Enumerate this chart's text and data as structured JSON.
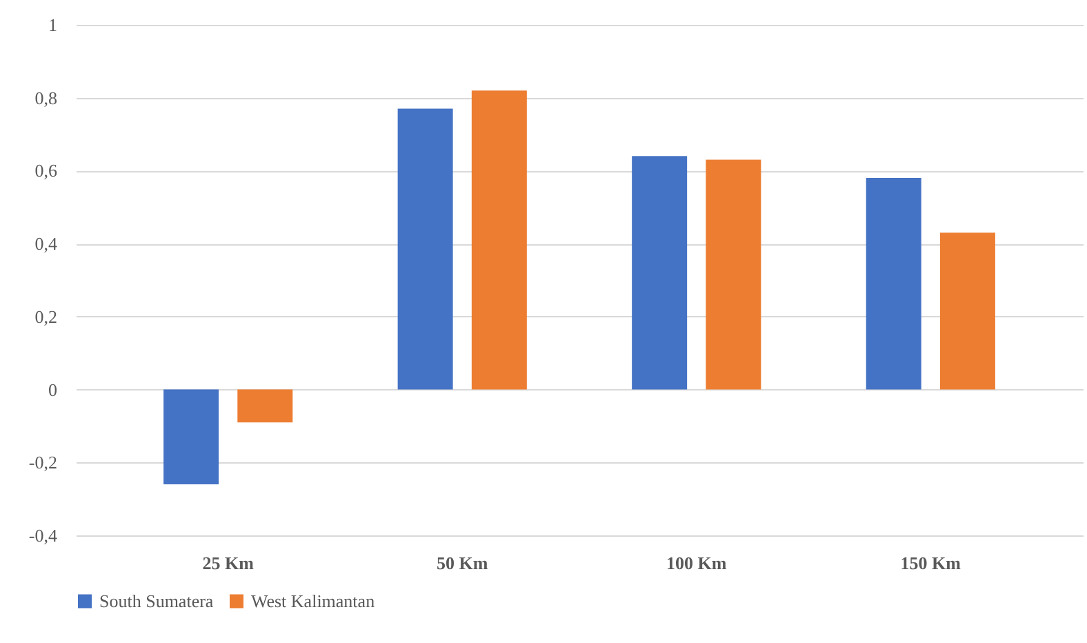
{
  "chart_data": {
    "type": "bar",
    "categories": [
      "25 Km",
      "50 Km",
      "100 Km",
      "150 Km"
    ],
    "series": [
      {
        "name": "South Sumatera",
        "color": "#4472c4",
        "values": [
          -0.26,
          0.77,
          0.64,
          0.58
        ]
      },
      {
        "name": "West Kalimantan",
        "color": "#ed7d31",
        "values": [
          -0.09,
          0.82,
          0.63,
          0.43
        ]
      }
    ],
    "ylim": [
      -0.4,
      1
    ],
    "yticks": [
      {
        "value": -0.4,
        "label": "-0,4"
      },
      {
        "value": -0.2,
        "label": "-0,2"
      },
      0,
      {
        "value": 0.2,
        "label": "0,2"
      },
      {
        "value": 0.4,
        "label": "0,4"
      },
      {
        "value": 0.6,
        "label": "0,6"
      },
      {
        "value": 0.8,
        "label": "0,8"
      },
      1
    ],
    "grid": "y",
    "legend": "bottom"
  }
}
